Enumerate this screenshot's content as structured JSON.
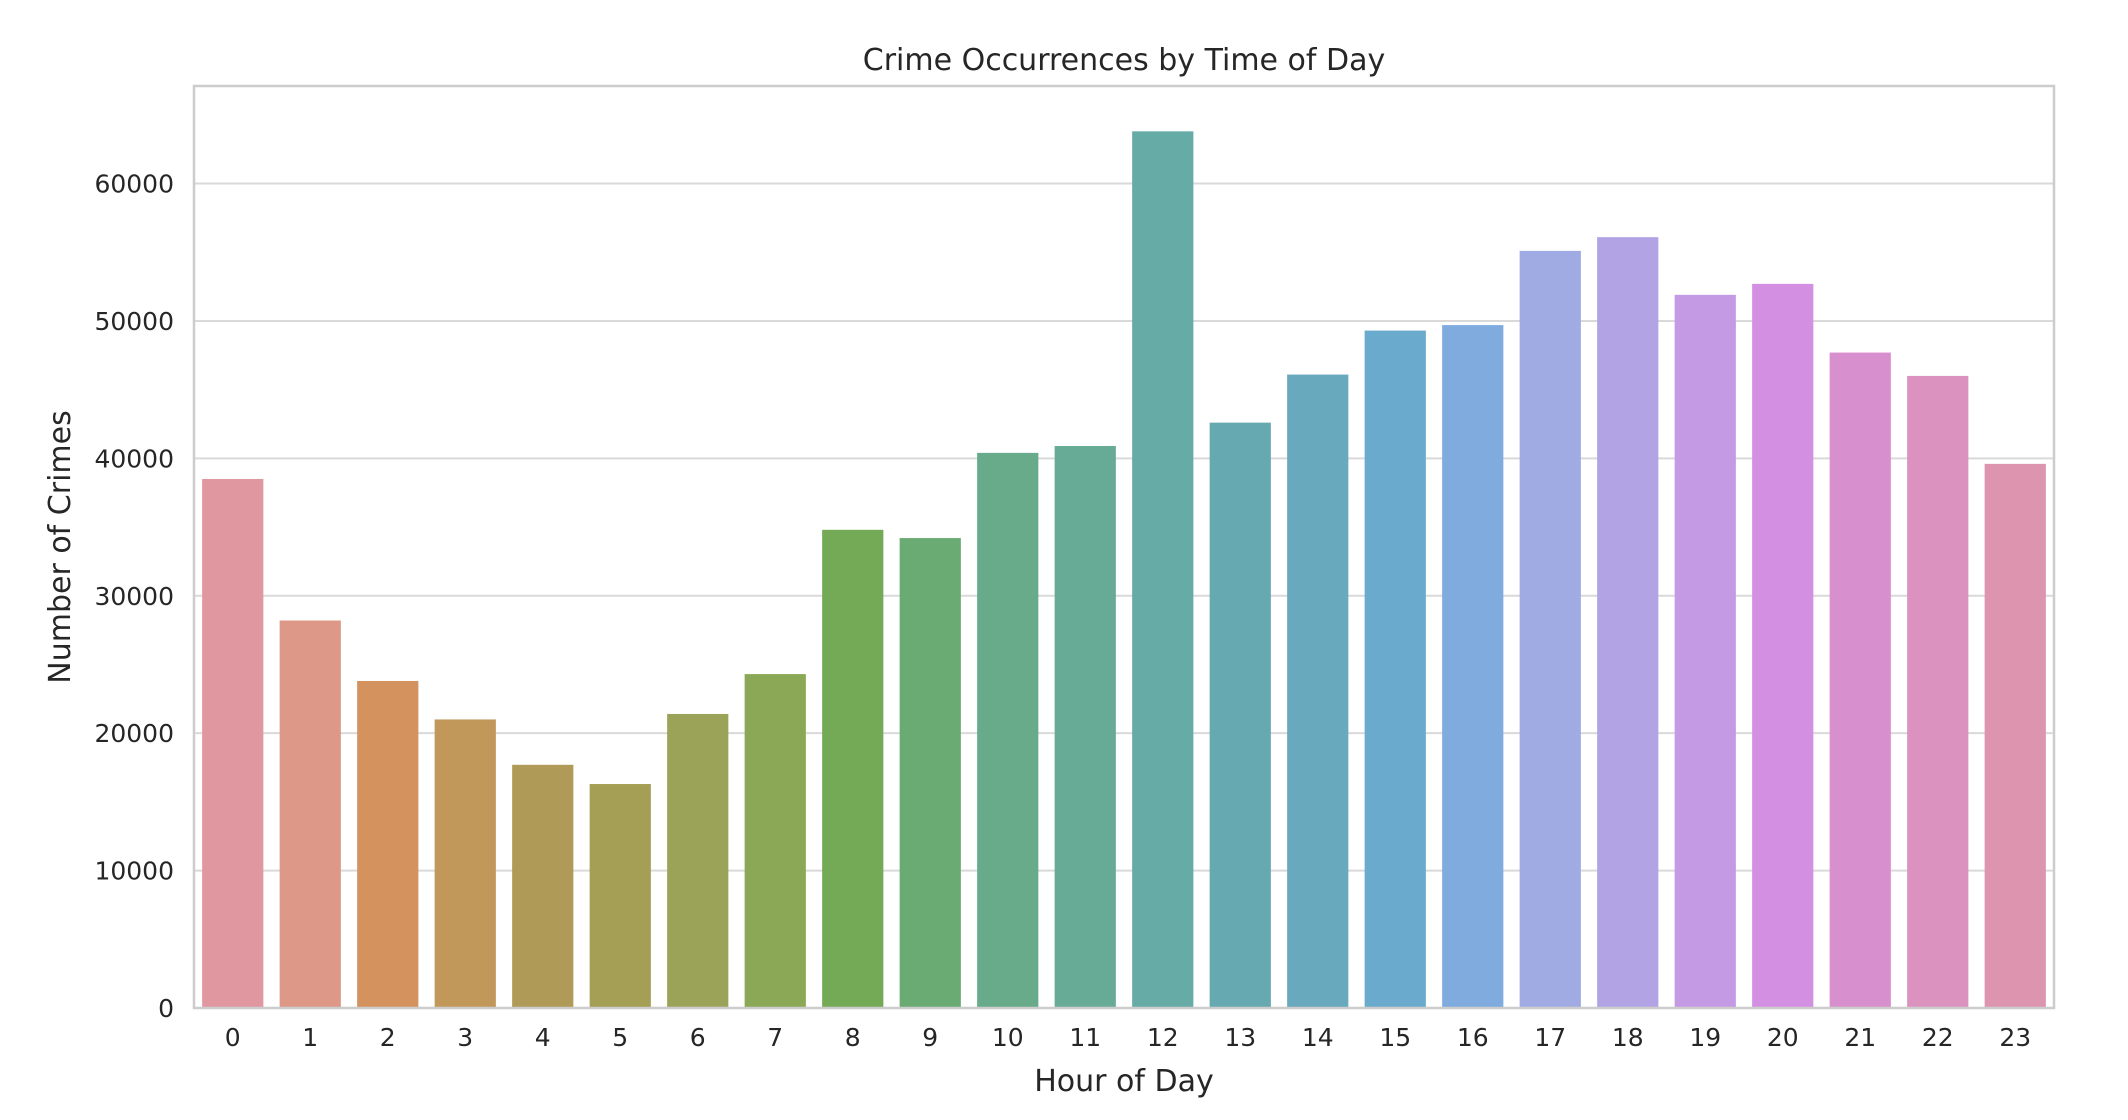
{
  "chart_data": {
    "type": "bar",
    "title": "Crime Occurrences by Time of Day",
    "xlabel": "Hour of Day",
    "ylabel": "Number of Crimes",
    "categories": [
      "0",
      "1",
      "2",
      "3",
      "4",
      "5",
      "6",
      "7",
      "8",
      "9",
      "10",
      "11",
      "12",
      "13",
      "14",
      "15",
      "16",
      "17",
      "18",
      "19",
      "20",
      "21",
      "22",
      "23"
    ],
    "values": [
      38500,
      28200,
      23800,
      21000,
      17700,
      16300,
      21400,
      24300,
      34800,
      34200,
      40400,
      40900,
      63800,
      42600,
      46100,
      49300,
      49700,
      55100,
      56100,
      51900,
      52700,
      47700,
      46000,
      39600
    ],
    "ylim": [
      0,
      67100
    ],
    "yticks": [
      0,
      10000,
      20000,
      30000,
      40000,
      50000,
      60000
    ],
    "ytick_labels": [
      "0",
      "10000",
      "20000",
      "30000",
      "40000",
      "50000",
      "60000"
    ],
    "grid": "horizontal",
    "legend": "none",
    "colors": [
      "#e0979f",
      "#dd9888",
      "#d4925e",
      "#c1985a",
      "#b09a57",
      "#a59e55",
      "#9ba358",
      "#8aa856",
      "#74aa55",
      "#6aab73",
      "#68ab8b",
      "#67ab97",
      "#66aba6",
      "#67a9b0",
      "#69a9be",
      "#6aaacc",
      "#7fabdf",
      "#a0abe3",
      "#b2a4e4",
      "#c59ae4",
      "#d38fe1",
      "#d88fcd",
      "#dc92bf",
      "#dd94ae"
    ]
  }
}
